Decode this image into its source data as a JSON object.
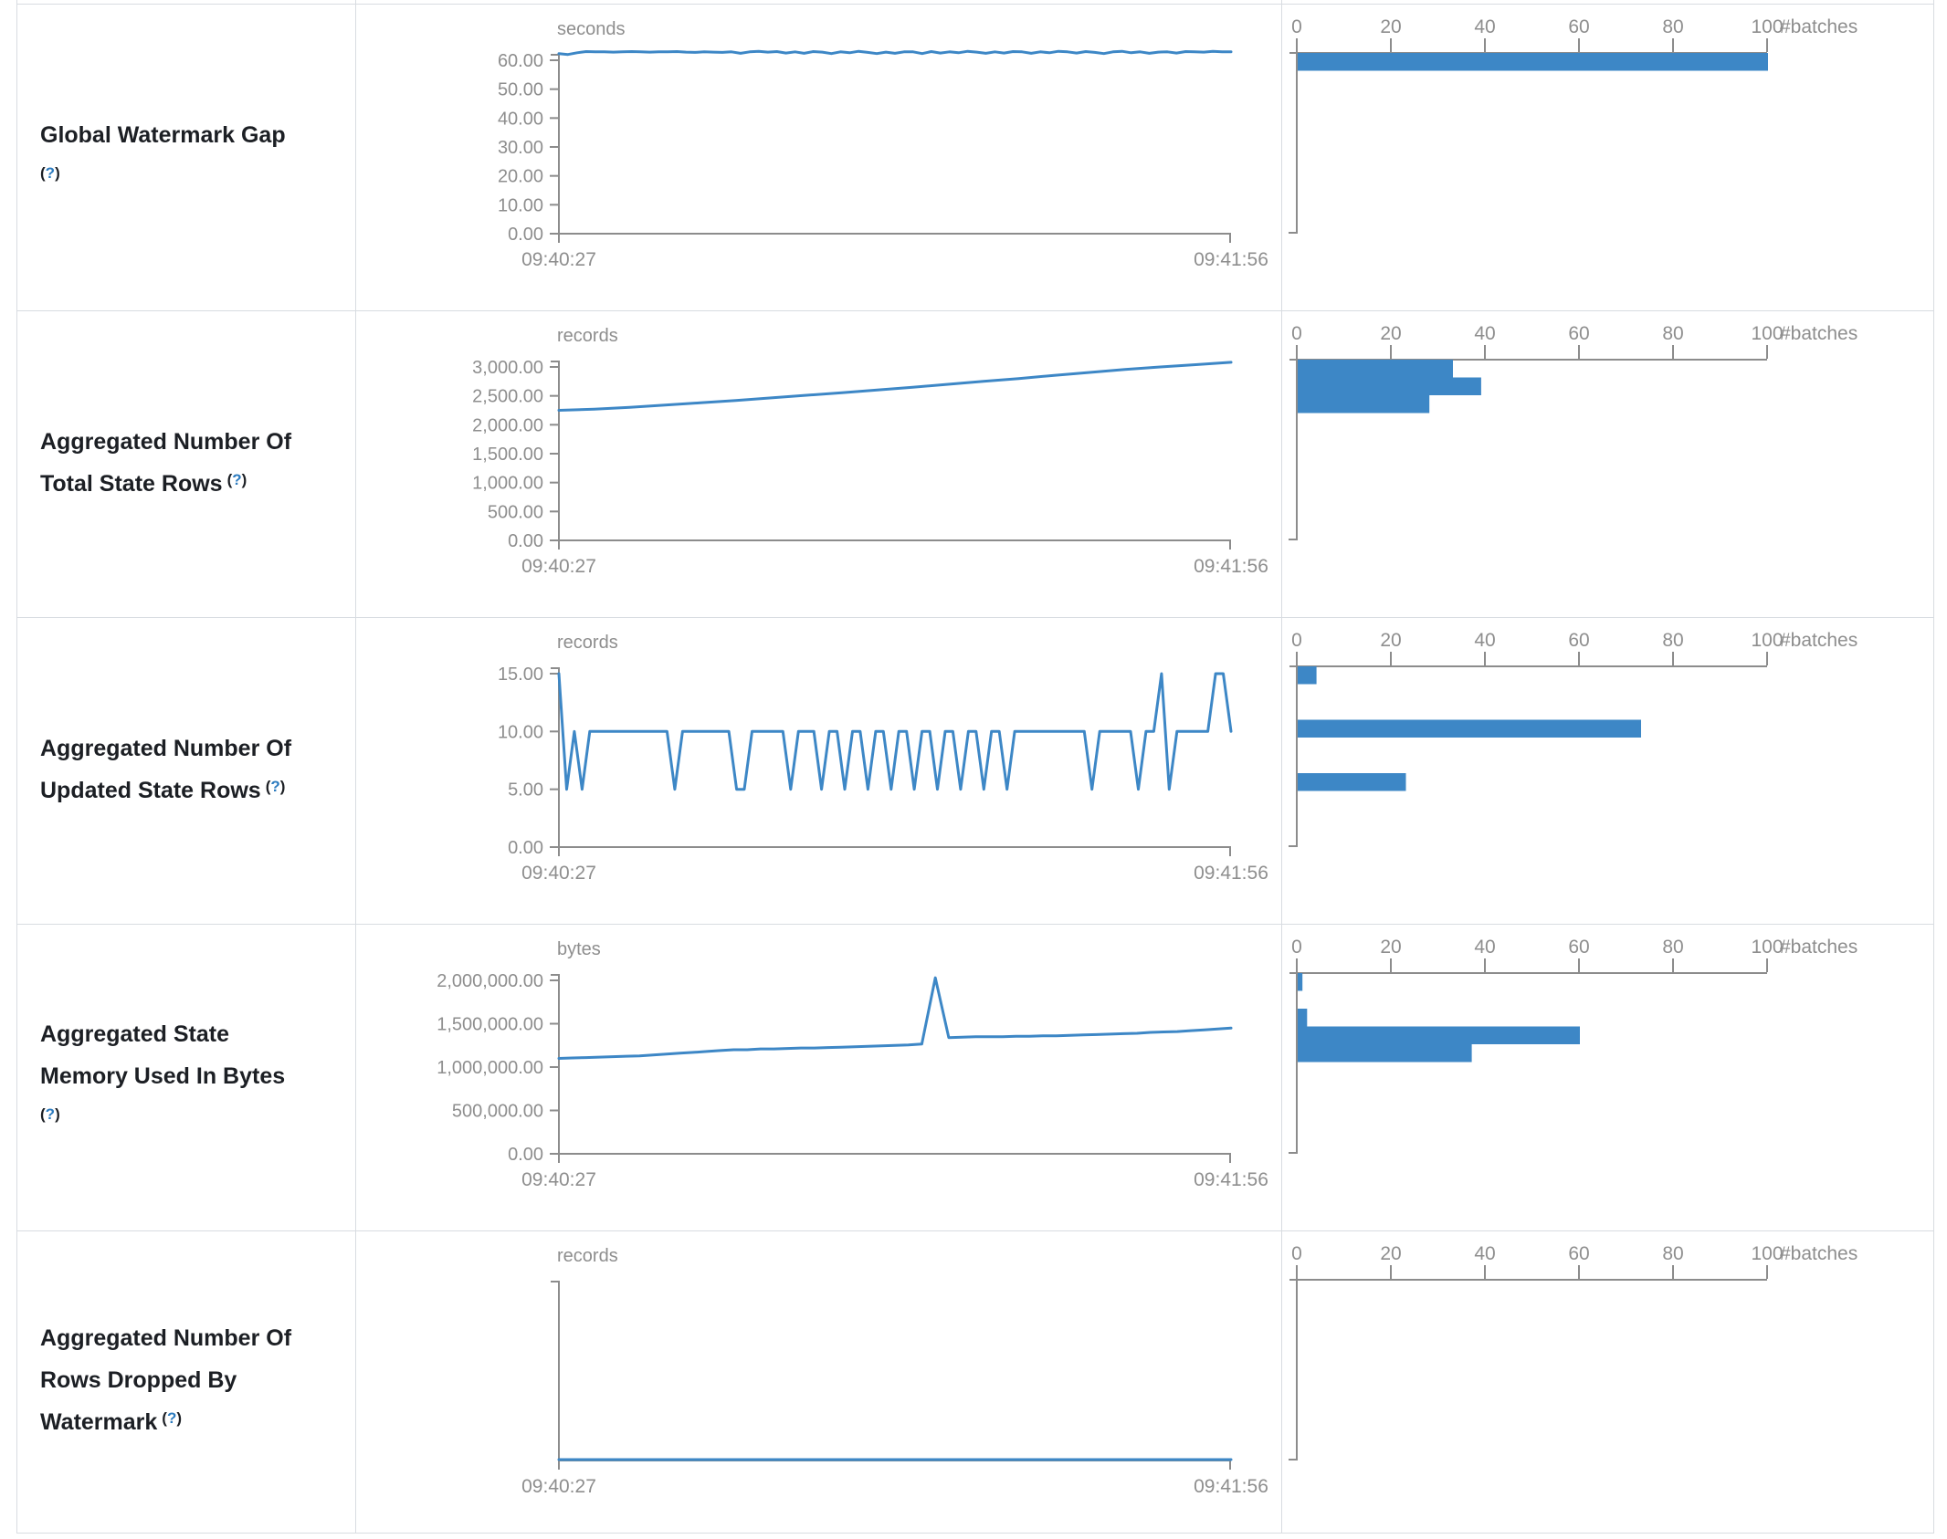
{
  "colors": {
    "series_blue": "#3d87c6",
    "axis_gray": "#8c8c8c",
    "tick_text_gray": "#8e8e8e",
    "label_text": "#1c1f24",
    "help_link_blue": "#2c7bbf",
    "border_gray": "#d8dce1"
  },
  "rows": [
    {
      "label": "Global Watermark Gap",
      "label_lines": [
        "Global Watermark Gap"
      ],
      "help_own_line": true,
      "help": {
        "open": "(",
        "q": "?",
        "close": ")"
      }
    },
    {
      "label": "Aggregated Number Of Total State Rows",
      "label_lines": [
        "Aggregated Number Of",
        "Total State Rows"
      ],
      "help_own_line": false,
      "help": {
        "open": "(",
        "q": "?",
        "close": ")"
      }
    },
    {
      "label": "Aggregated Number Of Updated State Rows",
      "label_lines": [
        "Aggregated Number Of",
        "Updated State Rows"
      ],
      "help_own_line": false,
      "help": {
        "open": "(",
        "q": "?",
        "close": ")"
      }
    },
    {
      "label": "Aggregated State Memory Used In Bytes",
      "label_lines": [
        "Aggregated State",
        "Memory Used In Bytes"
      ],
      "help_own_line": true,
      "help": {
        "open": "(",
        "q": "?",
        "close": ")"
      }
    },
    {
      "label": "Aggregated Number Of Rows Dropped By Watermark",
      "label_lines": [
        "Aggregated Number Of",
        "Rows Dropped By",
        "Watermark"
      ],
      "help_own_line": false,
      "help": {
        "open": "(",
        "q": "?",
        "close": ")"
      }
    }
  ],
  "chart_data": [
    {
      "row": "Global Watermark Gap",
      "timeline": {
        "type": "line",
        "unit": "seconds",
        "x_start": "09:40:27",
        "x_end": "09:41:56",
        "y_tick_values": [
          60,
          50,
          40,
          30,
          20,
          10,
          0
        ],
        "y_tick_labels": [
          "60.00",
          "50.00",
          "40.00",
          "30.00",
          "20.00",
          "10.00",
          "0.00"
        ],
        "values": [
          62.3,
          62.0,
          62.6,
          63.0,
          62.9,
          62.9,
          62.8,
          62.9,
          63.0,
          62.9,
          62.8,
          62.9,
          62.9,
          63.0,
          62.8,
          62.7,
          62.9,
          62.8,
          62.7,
          62.9,
          62.4,
          62.9,
          63.1,
          62.8,
          63.0,
          62.5,
          62.9,
          62.4,
          63.0,
          62.8,
          62.3,
          62.9,
          62.6,
          63.1,
          62.7,
          62.3,
          62.8,
          62.4,
          62.9,
          62.9,
          62.3,
          63.0,
          62.5,
          62.9,
          62.6,
          63.1,
          62.8,
          62.4,
          62.9,
          62.5,
          63.0,
          62.9,
          62.4,
          62.9,
          62.6,
          63.1,
          62.9,
          62.5,
          63.0,
          62.7,
          62.3,
          62.9,
          63.1,
          62.6,
          62.9,
          62.4,
          62.8,
          62.9,
          62.5,
          63.0,
          62.9,
          62.8,
          63.1,
          62.9,
          62.9
        ]
      },
      "histogram": {
        "type": "bar",
        "xlabel": "#batches",
        "x_ticks": [
          0,
          20,
          40,
          60,
          80,
          100
        ],
        "bucket_slots": [
          0
        ],
        "counts": [
          100
        ]
      }
    },
    {
      "row": "Aggregated Number Of Total State Rows",
      "timeline": {
        "type": "line",
        "unit": "records",
        "x_start": "09:40:27",
        "x_end": "09:41:56",
        "y_tick_values": [
          3000,
          2500,
          2000,
          1500,
          1000,
          500,
          0
        ],
        "y_tick_labels": [
          "3,000.00",
          "2,500.00",
          "2,000.00",
          "1,500.00",
          "1,000.00",
          "500.00",
          "0.00"
        ],
        "values": [
          2250,
          2270,
          2300,
          2340,
          2380,
          2420,
          2465,
          2510,
          2555,
          2600,
          2650,
          2700,
          2750,
          2800,
          2855,
          2905,
          2955,
          3000,
          3040,
          3080
        ]
      },
      "histogram": {
        "type": "bar",
        "xlabel": "#batches",
        "x_ticks": [
          0,
          20,
          40,
          60,
          80,
          100
        ],
        "bucket_slots": [
          0,
          1,
          2
        ],
        "counts": [
          33,
          39,
          28
        ]
      }
    },
    {
      "row": "Aggregated Number Of Updated State Rows",
      "timeline": {
        "type": "line",
        "unit": "records",
        "x_start": "09:40:27",
        "x_end": "09:41:56",
        "y_tick_values": [
          15,
          10,
          5,
          0
        ],
        "y_tick_labels": [
          "15.00",
          "10.00",
          "5.00",
          "0.00"
        ],
        "values": [
          15,
          5,
          10,
          5,
          10,
          10,
          10,
          10,
          10,
          10,
          10,
          10,
          10,
          10,
          10,
          5,
          10,
          10,
          10,
          10,
          10,
          10,
          10,
          5,
          5,
          10,
          10,
          10,
          10,
          10,
          5,
          10,
          10,
          10,
          5,
          10,
          10,
          5,
          10,
          10,
          5,
          10,
          10,
          5,
          10,
          10,
          5,
          10,
          10,
          5,
          10,
          10,
          5,
          10,
          10,
          5,
          10,
          10,
          5,
          10,
          10,
          10,
          10,
          10,
          10,
          10,
          10,
          10,
          10,
          5,
          10,
          10,
          10,
          10,
          10,
          5,
          10,
          10,
          15,
          5,
          10,
          10,
          10,
          10,
          10,
          15,
          15,
          10
        ]
      },
      "histogram": {
        "type": "bar",
        "xlabel": "#batches",
        "x_ticks": [
          0,
          20,
          40,
          60,
          80,
          100
        ],
        "bucket_slots": [
          0,
          3,
          6
        ],
        "counts": [
          4,
          73,
          23
        ]
      }
    },
    {
      "row": "Aggregated State Memory Used In Bytes",
      "timeline": {
        "type": "line",
        "unit": "bytes",
        "x_start": "09:40:27",
        "x_end": "09:41:56",
        "y_tick_values": [
          2000000,
          1500000,
          1000000,
          500000,
          0
        ],
        "y_tick_labels": [
          "2,000,000.00",
          "1,500,000.00",
          "1,000,000.00",
          "500,000.00",
          "0.00"
        ],
        "values": [
          1100000,
          1105000,
          1110000,
          1115000,
          1120000,
          1125000,
          1130000,
          1140000,
          1150000,
          1160000,
          1170000,
          1180000,
          1190000,
          1200000,
          1200000,
          1210000,
          1210000,
          1215000,
          1220000,
          1220000,
          1225000,
          1230000,
          1235000,
          1240000,
          1245000,
          1250000,
          1255000,
          1265000,
          2030000,
          1340000,
          1345000,
          1350000,
          1350000,
          1350000,
          1355000,
          1355000,
          1360000,
          1360000,
          1365000,
          1370000,
          1375000,
          1380000,
          1385000,
          1390000,
          1400000,
          1405000,
          1410000,
          1420000,
          1430000,
          1440000,
          1450000
        ]
      },
      "histogram": {
        "type": "bar",
        "xlabel": "#batches",
        "x_ticks": [
          0,
          20,
          40,
          60,
          80,
          100
        ],
        "bucket_slots": [
          0,
          2,
          3,
          4
        ],
        "counts": [
          1,
          2,
          60,
          37
        ]
      }
    },
    {
      "row": "Aggregated Number Of Rows Dropped By Watermark",
      "timeline": {
        "type": "line",
        "unit": "records",
        "x_start": "09:40:27",
        "x_end": "09:41:56",
        "y_tick_values": [],
        "y_tick_labels": [],
        "values": [
          0,
          0,
          0,
          0,
          0,
          0,
          0,
          0,
          0,
          0
        ]
      },
      "histogram": {
        "type": "bar",
        "xlabel": "#batches",
        "x_ticks": [
          0,
          20,
          40,
          60,
          80,
          100
        ],
        "bucket_slots": [],
        "counts": []
      }
    }
  ]
}
